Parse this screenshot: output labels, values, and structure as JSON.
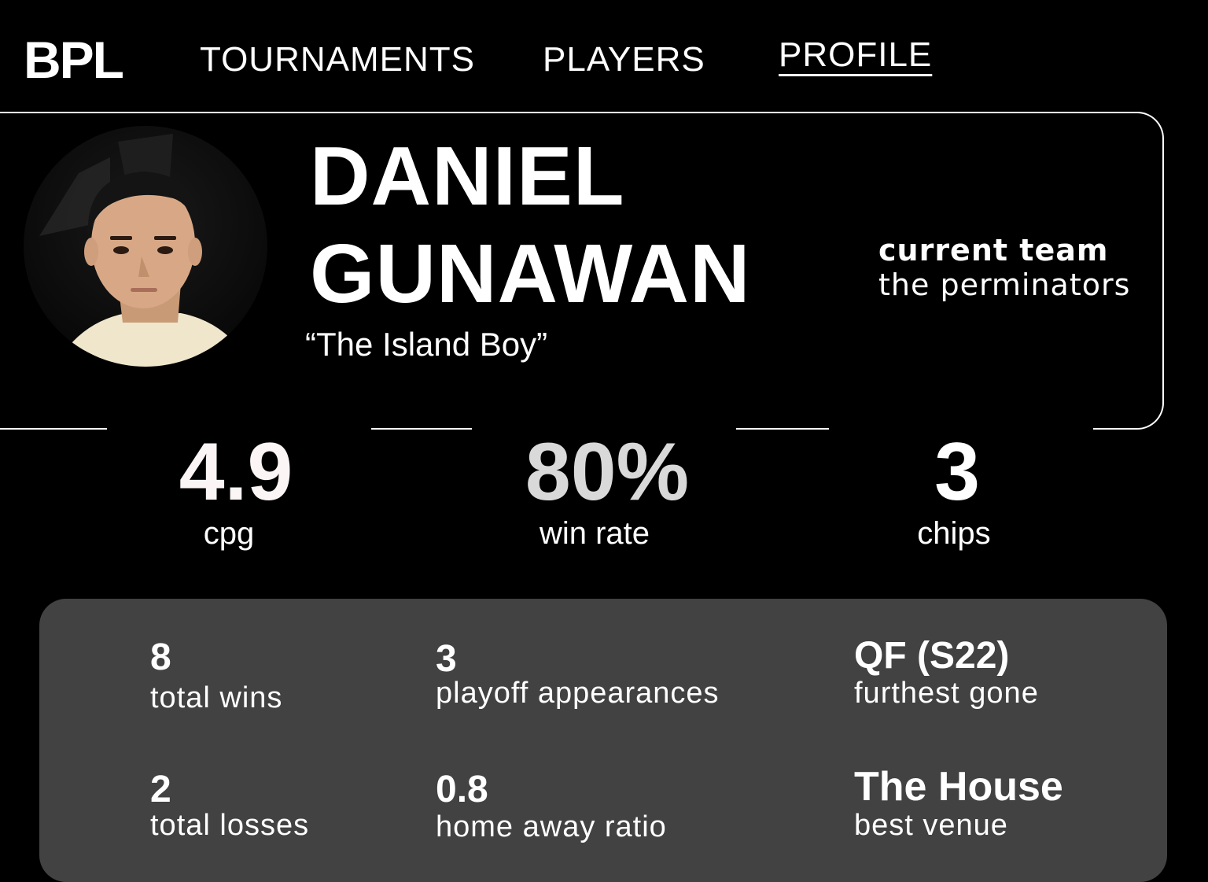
{
  "header": {
    "logo": "BPL",
    "nav": [
      {
        "label": "TOURNAMENTS",
        "active": false
      },
      {
        "label": "PLAYERS",
        "active": false
      },
      {
        "label": "PROFILE",
        "active": true
      }
    ]
  },
  "profile": {
    "avatar": "player-photo",
    "first_name": "DANIEL",
    "last_name": "GUNAWAN",
    "nickname": "“The Island Boy”",
    "team_label": "current team",
    "team_value": "the perminators"
  },
  "key_stats": [
    {
      "value": "4.9",
      "label": "cpg",
      "color": "#fbf5f5"
    },
    {
      "value": "80%",
      "label": "win rate",
      "color": "#d9d9d9"
    },
    {
      "value": "3",
      "label": "chips",
      "color": "#ffffff"
    }
  ],
  "panel_stats": [
    {
      "value": "8",
      "label": "total wins"
    },
    {
      "value": "3",
      "label": "playoff appearances"
    },
    {
      "value": "QF (S22)",
      "label": "furthest gone"
    },
    {
      "value": "2",
      "label": "total losses"
    },
    {
      "value": "0.8",
      "label": "home away ratio"
    },
    {
      "value": "The House",
      "label": "best venue"
    }
  ],
  "colors": {
    "background": "#000000",
    "panel": "#424242",
    "text": "#ffffff"
  }
}
